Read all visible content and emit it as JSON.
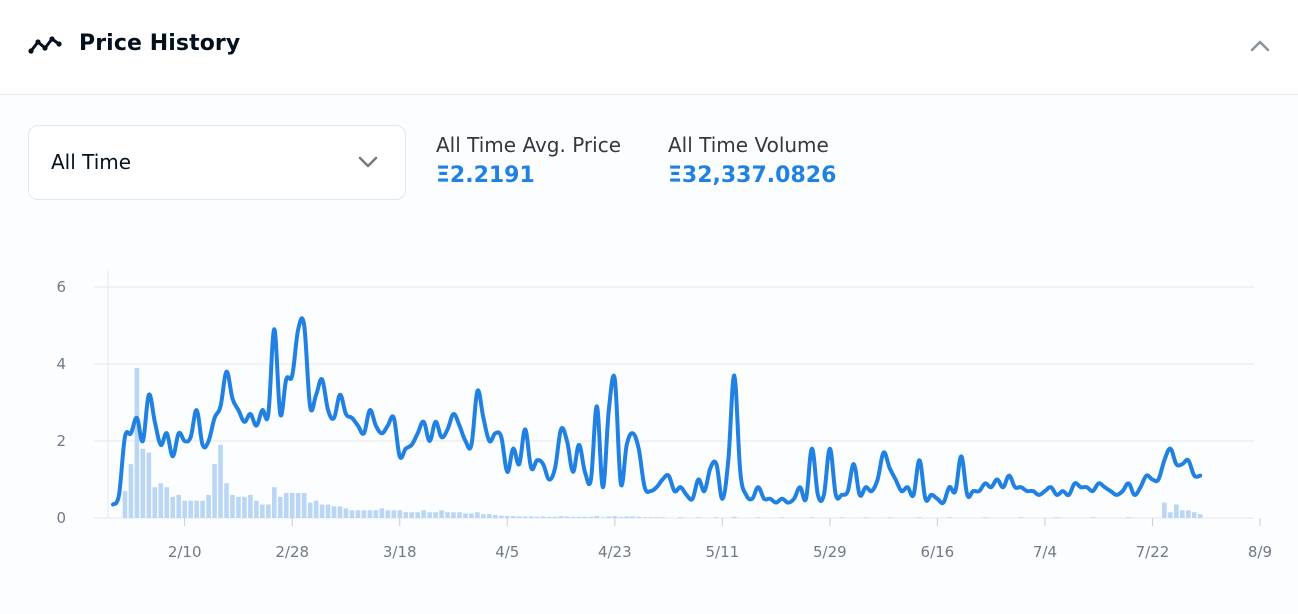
{
  "header": {
    "title": "Price History",
    "icon": "trend-line-icon",
    "collapse_icon": "chevron-up-icon"
  },
  "filter": {
    "selected": "All Time",
    "icon": "chevron-down-icon"
  },
  "stats": {
    "avg_label": "All Time Avg. Price",
    "avg_value": "Ξ2.2191",
    "volume_label": "All Time Volume",
    "volume_value": "Ξ32,337.0826"
  },
  "colors": {
    "line": "#2081e2",
    "bars": "#b9d7f5",
    "grid": "#e5e8eb",
    "ticks": "#707a83"
  },
  "chart_data": {
    "type": "line",
    "title": "",
    "xlabel": "",
    "ylabel": "",
    "ylim": [
      0,
      6
    ],
    "xlim": [
      0,
      191
    ],
    "y_ticks": [
      "0",
      "2",
      "4",
      "6"
    ],
    "x_ticks": [
      {
        "x": 12,
        "label": "2/10"
      },
      {
        "x": 30,
        "label": "2/28"
      },
      {
        "x": 48,
        "label": "3/18"
      },
      {
        "x": 66,
        "label": "4/5"
      },
      {
        "x": 84,
        "label": "4/23"
      },
      {
        "x": 102,
        "label": "5/11"
      },
      {
        "x": 120,
        "label": "5/29"
      },
      {
        "x": 138,
        "label": "6/16"
      },
      {
        "x": 156,
        "label": "7/4"
      },
      {
        "x": 174,
        "label": "7/22"
      },
      {
        "x": 192,
        "label": "8/9"
      }
    ],
    "grid": true,
    "series": [
      {
        "type": "line",
        "points": [
          [
            0,
            0.35
          ],
          [
            1,
            0.6
          ],
          [
            2,
            2.1
          ],
          [
            3,
            2.2
          ],
          [
            4,
            2.6
          ],
          [
            5,
            2.0
          ],
          [
            6,
            3.2
          ],
          [
            7,
            2.5
          ],
          [
            8,
            1.9
          ],
          [
            9,
            2.2
          ],
          [
            10,
            1.6
          ],
          [
            11,
            2.2
          ],
          [
            12,
            2.0
          ],
          [
            13,
            2.1
          ],
          [
            14,
            2.8
          ],
          [
            15,
            1.9
          ],
          [
            16,
            2.0
          ],
          [
            17,
            2.6
          ],
          [
            18,
            2.9
          ],
          [
            19,
            3.8
          ],
          [
            20,
            3.1
          ],
          [
            21,
            2.8
          ],
          [
            22,
            2.5
          ],
          [
            23,
            2.7
          ],
          [
            24,
            2.4
          ],
          [
            25,
            2.8
          ],
          [
            26,
            2.7
          ],
          [
            27,
            4.9
          ],
          [
            28,
            2.7
          ],
          [
            29,
            3.6
          ],
          [
            30,
            3.7
          ],
          [
            31,
            4.9
          ],
          [
            32,
            5.0
          ],
          [
            33,
            2.9
          ],
          [
            34,
            3.2
          ],
          [
            35,
            3.6
          ],
          [
            36,
            2.8
          ],
          [
            37,
            2.6
          ],
          [
            38,
            3.2
          ],
          [
            39,
            2.7
          ],
          [
            40,
            2.6
          ],
          [
            41,
            2.4
          ],
          [
            42,
            2.2
          ],
          [
            43,
            2.8
          ],
          [
            44,
            2.4
          ],
          [
            45,
            2.2
          ],
          [
            46,
            2.4
          ],
          [
            47,
            2.6
          ],
          [
            48,
            1.6
          ],
          [
            49,
            1.8
          ],
          [
            50,
            1.9
          ],
          [
            51,
            2.2
          ],
          [
            52,
            2.5
          ],
          [
            53,
            2.0
          ],
          [
            54,
            2.5
          ],
          [
            55,
            2.1
          ],
          [
            56,
            2.3
          ],
          [
            57,
            2.7
          ],
          [
            58,
            2.4
          ],
          [
            59,
            2.0
          ],
          [
            60,
            1.9
          ],
          [
            61,
            3.3
          ],
          [
            62,
            2.6
          ],
          [
            63,
            2.0
          ],
          [
            64,
            2.2
          ],
          [
            65,
            2.1
          ],
          [
            66,
            1.2
          ],
          [
            67,
            1.8
          ],
          [
            68,
            1.4
          ],
          [
            69,
            2.3
          ],
          [
            70,
            1.3
          ],
          [
            71,
            1.5
          ],
          [
            72,
            1.4
          ],
          [
            73,
            1.0
          ],
          [
            74,
            1.3
          ],
          [
            75,
            2.3
          ],
          [
            76,
            2.0
          ],
          [
            77,
            1.2
          ],
          [
            78,
            1.9
          ],
          [
            79,
            1.2
          ],
          [
            80,
            1.0
          ],
          [
            81,
            2.9
          ],
          [
            82,
            0.8
          ],
          [
            83,
            2.8
          ],
          [
            84,
            3.6
          ],
          [
            85,
            0.9
          ],
          [
            86,
            1.9
          ],
          [
            87,
            2.2
          ],
          [
            88,
            1.8
          ],
          [
            89,
            0.8
          ],
          [
            90,
            0.7
          ],
          [
            91,
            0.8
          ],
          [
            92,
            1.0
          ],
          [
            93,
            1.1
          ],
          [
            94,
            0.7
          ],
          [
            95,
            0.8
          ],
          [
            96,
            0.6
          ],
          [
            97,
            0.5
          ],
          [
            98,
            1.0
          ],
          [
            99,
            0.7
          ],
          [
            100,
            1.3
          ],
          [
            101,
            1.4
          ],
          [
            102,
            0.5
          ],
          [
            103,
            1.5
          ],
          [
            104,
            3.7
          ],
          [
            105,
            1.2
          ],
          [
            106,
            0.6
          ],
          [
            107,
            0.5
          ],
          [
            108,
            0.8
          ],
          [
            109,
            0.5
          ],
          [
            110,
            0.5
          ],
          [
            111,
            0.4
          ],
          [
            112,
            0.5
          ],
          [
            113,
            0.4
          ],
          [
            114,
            0.5
          ],
          [
            115,
            0.8
          ],
          [
            116,
            0.5
          ],
          [
            117,
            1.8
          ],
          [
            118,
            0.6
          ],
          [
            119,
            0.6
          ],
          [
            120,
            1.8
          ],
          [
            121,
            0.6
          ],
          [
            122,
            0.6
          ],
          [
            123,
            0.7
          ],
          [
            124,
            1.4
          ],
          [
            125,
            0.6
          ],
          [
            126,
            0.8
          ],
          [
            127,
            0.7
          ],
          [
            128,
            1.0
          ],
          [
            129,
            1.7
          ],
          [
            130,
            1.3
          ],
          [
            131,
            1.0
          ],
          [
            132,
            0.7
          ],
          [
            133,
            0.8
          ],
          [
            134,
            0.6
          ],
          [
            135,
            1.5
          ],
          [
            136,
            0.5
          ],
          [
            137,
            0.6
          ],
          [
            138,
            0.5
          ],
          [
            139,
            0.4
          ],
          [
            140,
            0.8
          ],
          [
            141,
            0.7
          ],
          [
            142,
            1.6
          ],
          [
            143,
            0.6
          ],
          [
            144,
            0.7
          ],
          [
            145,
            0.7
          ],
          [
            146,
            0.9
          ],
          [
            147,
            0.8
          ],
          [
            148,
            1.0
          ],
          [
            149,
            0.8
          ],
          [
            150,
            1.1
          ],
          [
            151,
            0.8
          ],
          [
            152,
            0.8
          ],
          [
            153,
            0.7
          ],
          [
            154,
            0.7
          ],
          [
            155,
            0.6
          ],
          [
            156,
            0.7
          ],
          [
            157,
            0.8
          ],
          [
            158,
            0.6
          ],
          [
            159,
            0.7
          ],
          [
            160,
            0.6
          ],
          [
            161,
            0.9
          ],
          [
            162,
            0.8
          ],
          [
            163,
            0.8
          ],
          [
            164,
            0.7
          ],
          [
            165,
            0.9
          ],
          [
            166,
            0.8
          ],
          [
            167,
            0.7
          ],
          [
            168,
            0.6
          ],
          [
            169,
            0.7
          ],
          [
            170,
            0.9
          ],
          [
            171,
            0.6
          ],
          [
            172,
            0.8
          ],
          [
            173,
            1.1
          ],
          [
            174,
            1.0
          ],
          [
            175,
            1.0
          ],
          [
            176,
            1.5
          ],
          [
            177,
            1.8
          ],
          [
            178,
            1.4
          ],
          [
            179,
            1.4
          ],
          [
            180,
            1.5
          ],
          [
            181,
            1.1
          ],
          [
            182,
            1.1
          ]
        ]
      },
      {
        "type": "bar",
        "points": [
          [
            2,
            0.7
          ],
          [
            3,
            1.4
          ],
          [
            4,
            3.9
          ],
          [
            5,
            1.8
          ],
          [
            6,
            1.7
          ],
          [
            7,
            0.8
          ],
          [
            8,
            0.9
          ],
          [
            9,
            0.8
          ],
          [
            10,
            0.55
          ],
          [
            11,
            0.6
          ],
          [
            12,
            0.45
          ],
          [
            13,
            0.45
          ],
          [
            14,
            0.45
          ],
          [
            15,
            0.45
          ],
          [
            16,
            0.6
          ],
          [
            17,
            1.4
          ],
          [
            18,
            1.9
          ],
          [
            19,
            0.9
          ],
          [
            20,
            0.6
          ],
          [
            21,
            0.55
          ],
          [
            22,
            0.55
          ],
          [
            23,
            0.6
          ],
          [
            24,
            0.45
          ],
          [
            25,
            0.35
          ],
          [
            26,
            0.35
          ],
          [
            27,
            0.8
          ],
          [
            28,
            0.55
          ],
          [
            29,
            0.65
          ],
          [
            30,
            0.65
          ],
          [
            31,
            0.65
          ],
          [
            32,
            0.65
          ],
          [
            33,
            0.4
          ],
          [
            34,
            0.45
          ],
          [
            35,
            0.35
          ],
          [
            36,
            0.35
          ],
          [
            37,
            0.3
          ],
          [
            38,
            0.3
          ],
          [
            39,
            0.25
          ],
          [
            40,
            0.2
          ],
          [
            41,
            0.2
          ],
          [
            42,
            0.2
          ],
          [
            43,
            0.2
          ],
          [
            44,
            0.2
          ],
          [
            45,
            0.25
          ],
          [
            46,
            0.2
          ],
          [
            47,
            0.2
          ],
          [
            48,
            0.2
          ],
          [
            49,
            0.15
          ],
          [
            50,
            0.15
          ],
          [
            51,
            0.15
          ],
          [
            52,
            0.2
          ],
          [
            53,
            0.15
          ],
          [
            54,
            0.15
          ],
          [
            55,
            0.2
          ],
          [
            56,
            0.15
          ],
          [
            57,
            0.15
          ],
          [
            58,
            0.15
          ],
          [
            59,
            0.12
          ],
          [
            60,
            0.12
          ],
          [
            61,
            0.15
          ],
          [
            62,
            0.1
          ],
          [
            63,
            0.1
          ],
          [
            64,
            0.08
          ],
          [
            65,
            0.06
          ],
          [
            66,
            0.05
          ],
          [
            67,
            0.05
          ],
          [
            68,
            0.04
          ],
          [
            69,
            0.04
          ],
          [
            70,
            0.04
          ],
          [
            71,
            0.03
          ],
          [
            72,
            0.04
          ],
          [
            73,
            0.03
          ],
          [
            74,
            0.03
          ],
          [
            75,
            0.05
          ],
          [
            76,
            0.04
          ],
          [
            77,
            0.03
          ],
          [
            78,
            0.03
          ],
          [
            79,
            0.03
          ],
          [
            80,
            0.03
          ],
          [
            81,
            0.05
          ],
          [
            82,
            0.02
          ],
          [
            83,
            0.04
          ],
          [
            84,
            0.05
          ],
          [
            85,
            0.03
          ],
          [
            86,
            0.04
          ],
          [
            87,
            0.04
          ],
          [
            88,
            0.03
          ],
          [
            89,
            0.02
          ],
          [
            90,
            0.02
          ],
          [
            91,
            0.02
          ],
          [
            92,
            0.02
          ],
          [
            95,
            0.02
          ],
          [
            98,
            0.02
          ],
          [
            101,
            0.02
          ],
          [
            104,
            0.03
          ],
          [
            108,
            0.02
          ],
          [
            112,
            0.02
          ],
          [
            117,
            0.02
          ],
          [
            122,
            0.02
          ],
          [
            126,
            0.02
          ],
          [
            130,
            0.02
          ],
          [
            135,
            0.02
          ],
          [
            140,
            0.02
          ],
          [
            146,
            0.02
          ],
          [
            152,
            0.02
          ],
          [
            158,
            0.02
          ],
          [
            164,
            0.02
          ],
          [
            170,
            0.02
          ],
          [
            176,
            0.4
          ],
          [
            177,
            0.15
          ],
          [
            178,
            0.35
          ],
          [
            179,
            0.2
          ],
          [
            180,
            0.2
          ],
          [
            181,
            0.15
          ],
          [
            182,
            0.1
          ]
        ]
      }
    ]
  }
}
